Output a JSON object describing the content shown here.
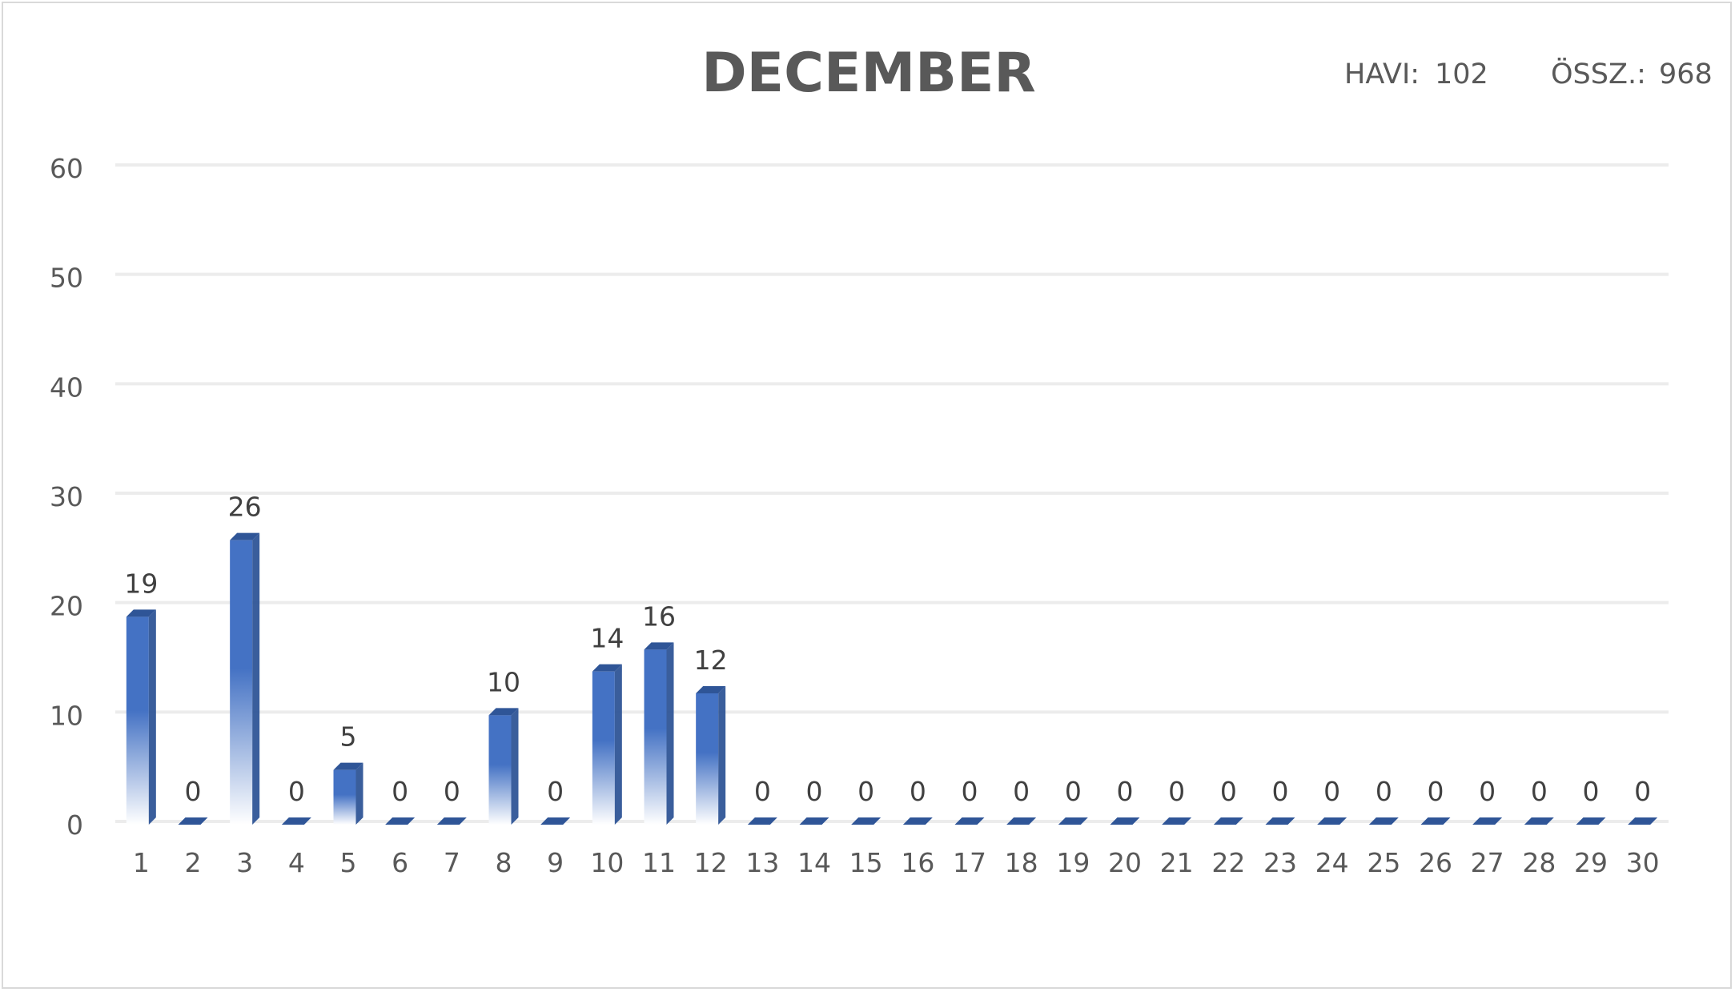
{
  "chart_data": {
    "type": "bar",
    "title": "DECEMBER",
    "summary": [
      {
        "label": "HAVI:",
        "value": "102"
      },
      {
        "label": "ÖSSZ.:",
        "value": "968"
      }
    ],
    "categories": [
      "1",
      "2",
      "3",
      "4",
      "5",
      "6",
      "7",
      "8",
      "9",
      "10",
      "11",
      "12",
      "13",
      "14",
      "15",
      "16",
      "17",
      "18",
      "19",
      "20",
      "21",
      "22",
      "23",
      "24",
      "25",
      "26",
      "27",
      "28",
      "29",
      "30"
    ],
    "values": [
      19,
      0,
      26,
      0,
      5,
      0,
      0,
      10,
      0,
      14,
      16,
      12,
      0,
      0,
      0,
      0,
      0,
      0,
      0,
      0,
      0,
      0,
      0,
      0,
      0,
      0,
      0,
      0,
      0,
      0
    ],
    "ylim": [
      0,
      60
    ],
    "yticks": [
      0,
      10,
      20,
      30,
      40,
      50,
      60
    ],
    "grid": true,
    "data_labels": true,
    "legend": "none",
    "colors": {
      "bar_front": "#4472c4",
      "bar_side": "#2f5597",
      "bar_top": "#2f5597",
      "bar_fade": "#ffffff",
      "grid": "#ececec",
      "text": "#595959"
    }
  }
}
